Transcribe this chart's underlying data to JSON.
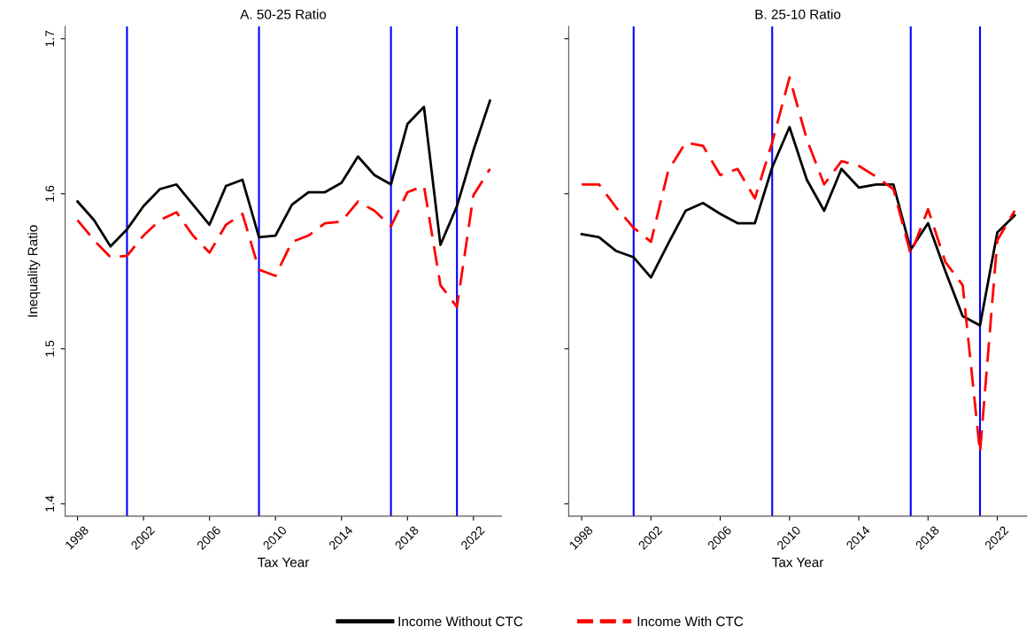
{
  "chart_data": [
    {
      "type": "line",
      "title": "A. 50-25 Ratio",
      "xlabel": "Tax Year",
      "ylabel": "Inequality Ratio",
      "x": [
        1998,
        1999,
        2000,
        2001,
        2002,
        2003,
        2004,
        2005,
        2006,
        2007,
        2008,
        2009,
        2010,
        2011,
        2012,
        2013,
        2014,
        2015,
        2016,
        2017,
        2018,
        2019,
        2020,
        2021,
        2022,
        2023
      ],
      "series": [
        {
          "name": "Income Without CTC",
          "color": "#000000",
          "line_style": "solid",
          "values": [
            1.595,
            1.583,
            1.566,
            1.577,
            1.592,
            1.603,
            1.606,
            1.593,
            1.58,
            1.605,
            1.609,
            1.572,
            1.573,
            1.593,
            1.601,
            1.601,
            1.607,
            1.624,
            1.612,
            1.606,
            1.645,
            1.656,
            1.567,
            1.592,
            1.628,
            1.66
          ]
        },
        {
          "name": "Income With CTC",
          "color": "#ff0000",
          "line_style": "dashed",
          "values": [
            1.583,
            1.57,
            1.559,
            1.56,
            1.573,
            1.583,
            1.588,
            1.573,
            1.562,
            1.58,
            1.587,
            1.551,
            1.547,
            1.569,
            1.573,
            1.581,
            1.582,
            1.595,
            1.589,
            1.579,
            1.601,
            1.605,
            1.541,
            1.527,
            1.599,
            1.616
          ]
        }
      ],
      "xlim": [
        1997.25,
        2023.7
      ],
      "xticks": [
        1998,
        2002,
        2006,
        2010,
        2014,
        2018,
        2022
      ],
      "ylim": [
        1.392,
        1.708
      ],
      "yticks": [
        1.4,
        1.5,
        1.6,
        1.7
      ],
      "ref_lines": [
        {
          "axis": "x",
          "value": 2001,
          "color": "#0000ff"
        },
        {
          "axis": "x",
          "value": 2009,
          "color": "#0000ff"
        },
        {
          "axis": "x",
          "value": 2017,
          "color": "#0000ff"
        },
        {
          "axis": "x",
          "value": 2021,
          "color": "#0000ff"
        }
      ],
      "grid": false,
      "legend": "bottom",
      "marker": "none"
    },
    {
      "type": "line",
      "title": "B. 25-10 Ratio",
      "xlabel": "Tax Year",
      "x": [
        1998,
        1999,
        2000,
        2001,
        2002,
        2003,
        2004,
        2005,
        2006,
        2007,
        2008,
        2009,
        2010,
        2011,
        2012,
        2013,
        2014,
        2015,
        2016,
        2017,
        2018,
        2019,
        2020,
        2021,
        2022,
        2023
      ],
      "series": [
        {
          "color": "#000000",
          "line_style": "solid",
          "values": [
            1.574,
            1.572,
            1.563,
            1.559,
            1.546,
            1.568,
            1.589,
            1.594,
            1.587,
            1.581,
            1.581,
            1.617,
            1.643,
            1.609,
            1.589,
            1.616,
            1.604,
            1.606,
            1.606,
            1.564,
            1.581,
            1.55,
            1.521,
            1.515,
            1.575,
            1.586
          ]
        },
        {
          "color": "#ff0000",
          "line_style": "dashed",
          "values": [
            1.606,
            1.606,
            1.591,
            1.578,
            1.569,
            1.615,
            1.633,
            1.631,
            1.612,
            1.616,
            1.597,
            1.633,
            1.675,
            1.635,
            1.606,
            1.621,
            1.618,
            1.611,
            1.603,
            1.561,
            1.59,
            1.556,
            1.541,
            1.433,
            1.57,
            1.589
          ]
        }
      ],
      "xlim": [
        1997.25,
        2023.7
      ],
      "xticks": [
        1998,
        2002,
        2006,
        2010,
        2014,
        2018,
        2022
      ],
      "ylim": [
        1.392,
        1.708
      ],
      "yticks": [
        1.4,
        1.5,
        1.6,
        1.7
      ],
      "tick_labels": "x",
      "ref_lines": [
        {
          "axis": "x",
          "value": 2001,
          "color": "#0000ff"
        },
        {
          "axis": "x",
          "value": 2009,
          "color": "#0000ff"
        },
        {
          "axis": "x",
          "value": 2017,
          "color": "#0000ff"
        },
        {
          "axis": "x",
          "value": 2021,
          "color": "#0000ff"
        }
      ],
      "grid": false,
      "marker": "none"
    }
  ]
}
